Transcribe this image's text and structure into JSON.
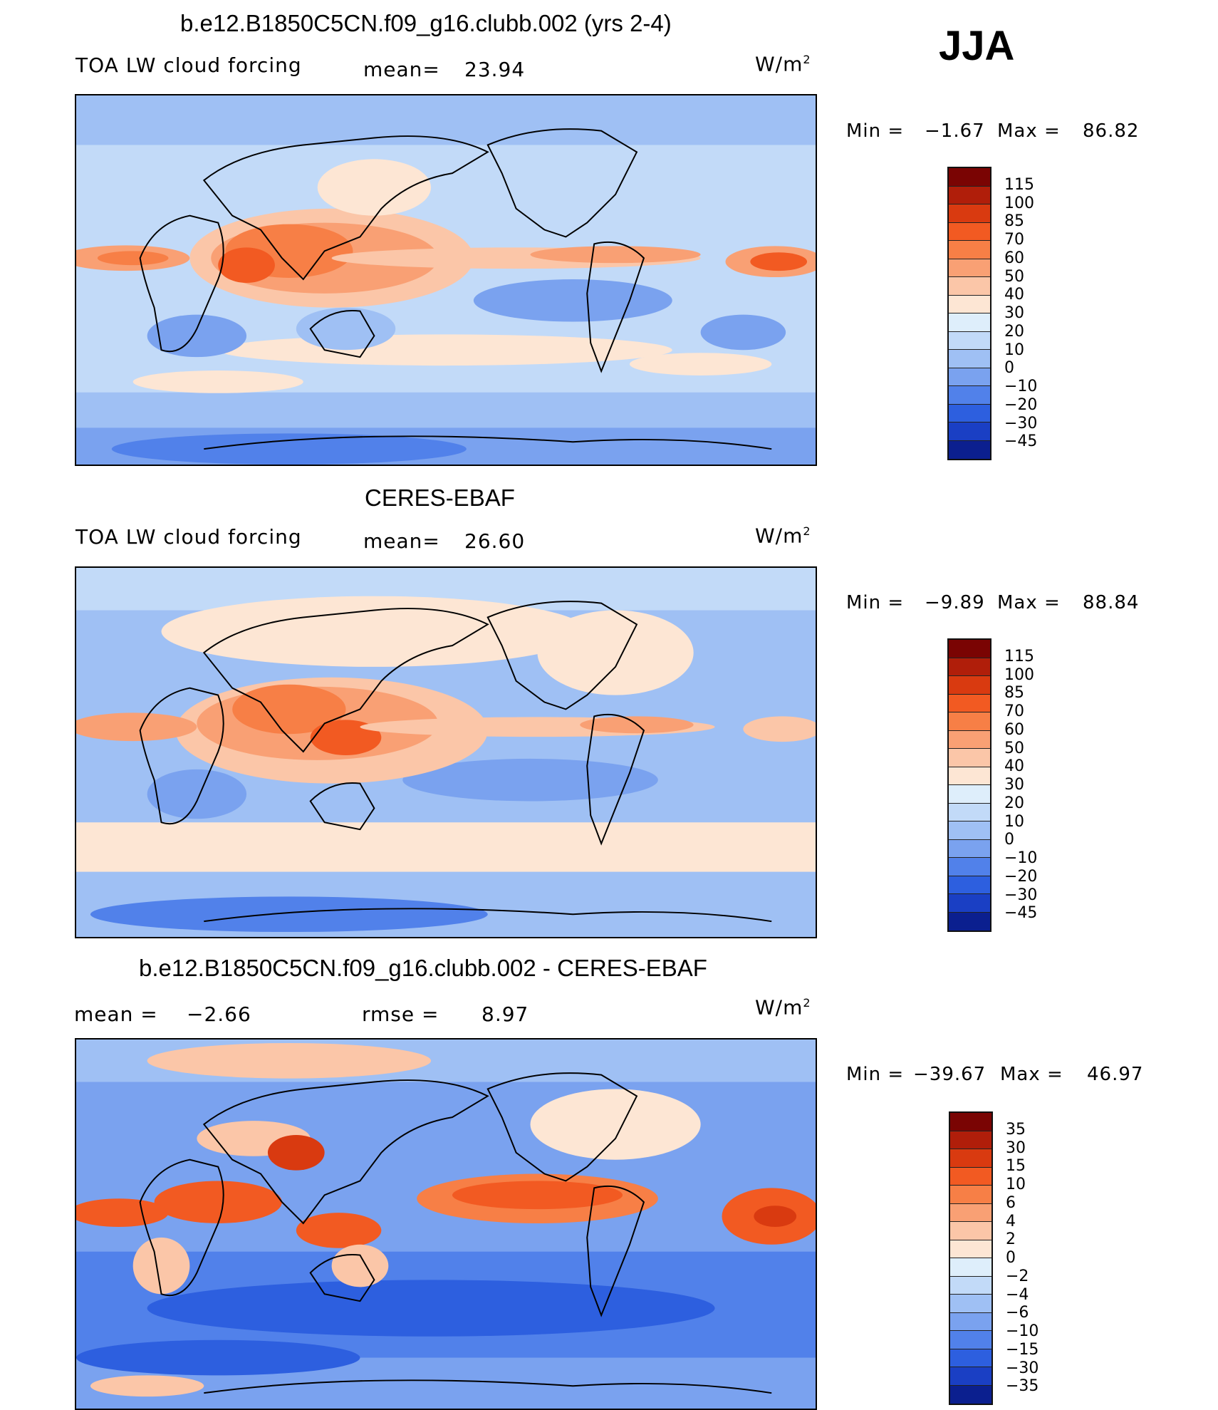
{
  "season": "JJA",
  "panels": [
    {
      "title": "b.e12.B1850C5CN.f09_g16.clubb.002 (yrs 2-4)",
      "left_text": "TOA LW cloud forcing",
      "mid_label": "mean=",
      "mid_value": "23.94",
      "units": "W/m",
      "units_sup": "2",
      "min_label": "Min  =",
      "min_value": "−1.67",
      "max_label": "Max  =",
      "max_value": "86.82",
      "levels": [
        "115",
        "100",
        "85",
        "70",
        "60",
        "50",
        "40",
        "30",
        "20",
        "10",
        "0",
        "−10",
        "−20",
        "−30",
        "−45"
      ],
      "colors": [
        "#7a0403",
        "#b01e0a",
        "#d93a10",
        "#f25a22",
        "#f77f46",
        "#f9a074",
        "#fbc6a8",
        "#fde6d4",
        "#deeefb",
        "#c2daf8",
        "#9fc0f4",
        "#7aa2ef",
        "#5181ea",
        "#2d5fdf",
        "#1a3fc4",
        "#0b1f8f"
      ]
    },
    {
      "title": "CERES-EBAF",
      "left_text": "TOA LW cloud forcing",
      "mid_label": "mean=",
      "mid_value": "26.60",
      "units": "W/m",
      "units_sup": "2",
      "min_label": "Min  =",
      "min_value": "−9.89",
      "max_label": "Max  =",
      "max_value": "88.84",
      "levels": [
        "115",
        "100",
        "85",
        "70",
        "60",
        "50",
        "40",
        "30",
        "20",
        "10",
        "0",
        "−10",
        "−20",
        "−30",
        "−45"
      ],
      "colors": [
        "#7a0403",
        "#b01e0a",
        "#d93a10",
        "#f25a22",
        "#f77f46",
        "#f9a074",
        "#fbc6a8",
        "#fde6d4",
        "#deeefb",
        "#c2daf8",
        "#9fc0f4",
        "#7aa2ef",
        "#5181ea",
        "#2d5fdf",
        "#1a3fc4",
        "#0b1f8f"
      ]
    },
    {
      "title": "b.e12.B1850C5CN.f09_g16.clubb.002 - CERES-EBAF",
      "left_label": "mean  =",
      "left_value": "−2.66",
      "mid_label": "rmse  =",
      "mid_value": "8.97",
      "units": "W/m",
      "units_sup": "2",
      "min_label": "Min  =",
      "min_value": "−39.67",
      "max_label": "Max  =",
      "max_value": "46.97",
      "levels": [
        "35",
        "30",
        "15",
        "10",
        "6",
        "4",
        "2",
        "0",
        "−2",
        "−4",
        "−6",
        "−10",
        "−15",
        "−30",
        "−35"
      ],
      "colors": [
        "#7a0403",
        "#b01e0a",
        "#d93a10",
        "#f25a22",
        "#f77f46",
        "#f9a074",
        "#fbc6a8",
        "#fde6d4",
        "#deeefb",
        "#c2daf8",
        "#9fc0f4",
        "#7aa2ef",
        "#5181ea",
        "#2d5fdf",
        "#1a3fc4",
        "#0b1f8f"
      ]
    }
  ]
}
